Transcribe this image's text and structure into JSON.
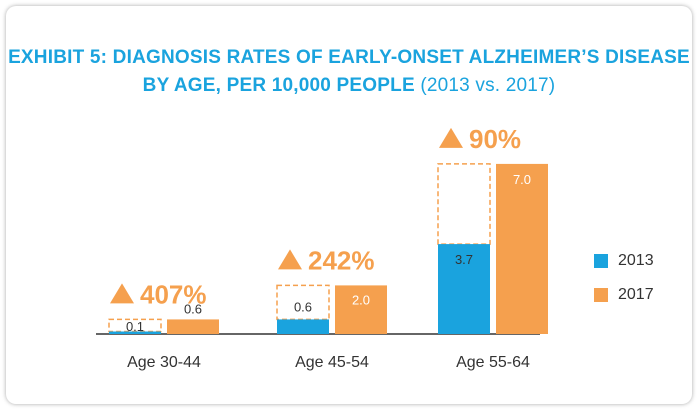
{
  "colors": {
    "title": "#1aa3de",
    "series_2013": "#1aa3de",
    "series_2017": "#f5a04e",
    "increase": "#f5a04e",
    "dashed_outline": "#f5a04e",
    "axis": "#333333"
  },
  "title": {
    "line1": "EXHIBIT 5: DIAGNOSIS RATES OF EARLY-ONSET ALZHEIMER’S DISEASE",
    "line2_bold": "BY AGE, PER 10,000 PEOPLE",
    "line2_light": "(2013 vs. 2017)"
  },
  "chart_data": {
    "type": "bar",
    "title": "EXHIBIT 5: DIAGNOSIS RATES OF EARLY-ONSET ALZHEIMER’S DISEASE BY AGE, PER 10,000 PEOPLE (2013 vs. 2017)",
    "categories": [
      "Age 30-44",
      "Age 45-54",
      "Age 55-64"
    ],
    "series": [
      {
        "name": "2013",
        "values": [
          0.1,
          0.6,
          3.7
        ],
        "labels": [
          "0.1",
          "0.6",
          "3.7"
        ]
      },
      {
        "name": "2017",
        "values": [
          0.6,
          2.0,
          7.0
        ],
        "labels": [
          "0.6",
          "2.0",
          "7.0"
        ]
      }
    ],
    "increase_labels": [
      "407%",
      "242%",
      "90%"
    ],
    "increase_marker": "▲",
    "ylim": [
      0,
      7
    ],
    "grid": false,
    "legend_position": "right"
  },
  "legend": [
    {
      "label": "2013",
      "color": "#1aa3de"
    },
    {
      "label": "2017",
      "color": "#f5a04e"
    }
  ]
}
